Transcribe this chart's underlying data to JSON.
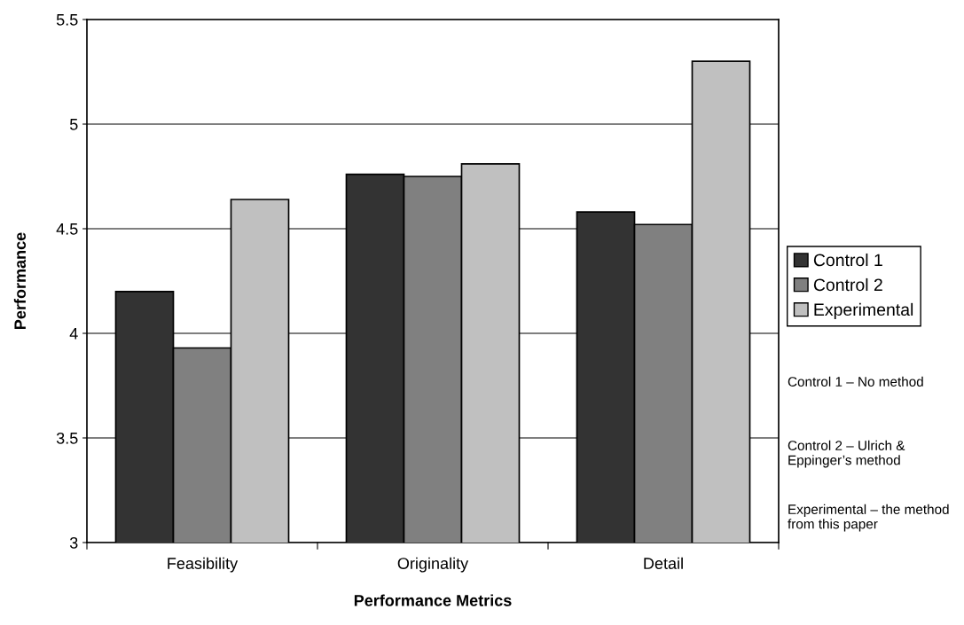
{
  "chart_data": {
    "type": "bar",
    "xlabel": "Performance Metrics",
    "ylabel": "Performance",
    "categories": [
      "Feasibility",
      "Originality",
      "Detail"
    ],
    "series": [
      {
        "name": "Control 1",
        "color": "#333333",
        "values": [
          4.2,
          4.76,
          4.58
        ]
      },
      {
        "name": "Control 2",
        "color": "#808080",
        "values": [
          3.93,
          4.75,
          4.52
        ]
      },
      {
        "name": "Experimental",
        "color": "#c0c0c0",
        "values": [
          4.64,
          4.81,
          5.3
        ]
      }
    ],
    "ylim": [
      3,
      5.5
    ],
    "yticks": [
      3,
      3.5,
      4,
      4.5,
      5,
      5.5
    ],
    "grid": "y",
    "legend": "right",
    "annotations": [
      "Control 1 – No method",
      "Control 2 – Ulrich & Eppinger’s method",
      "Experimental – the method from this paper"
    ]
  }
}
